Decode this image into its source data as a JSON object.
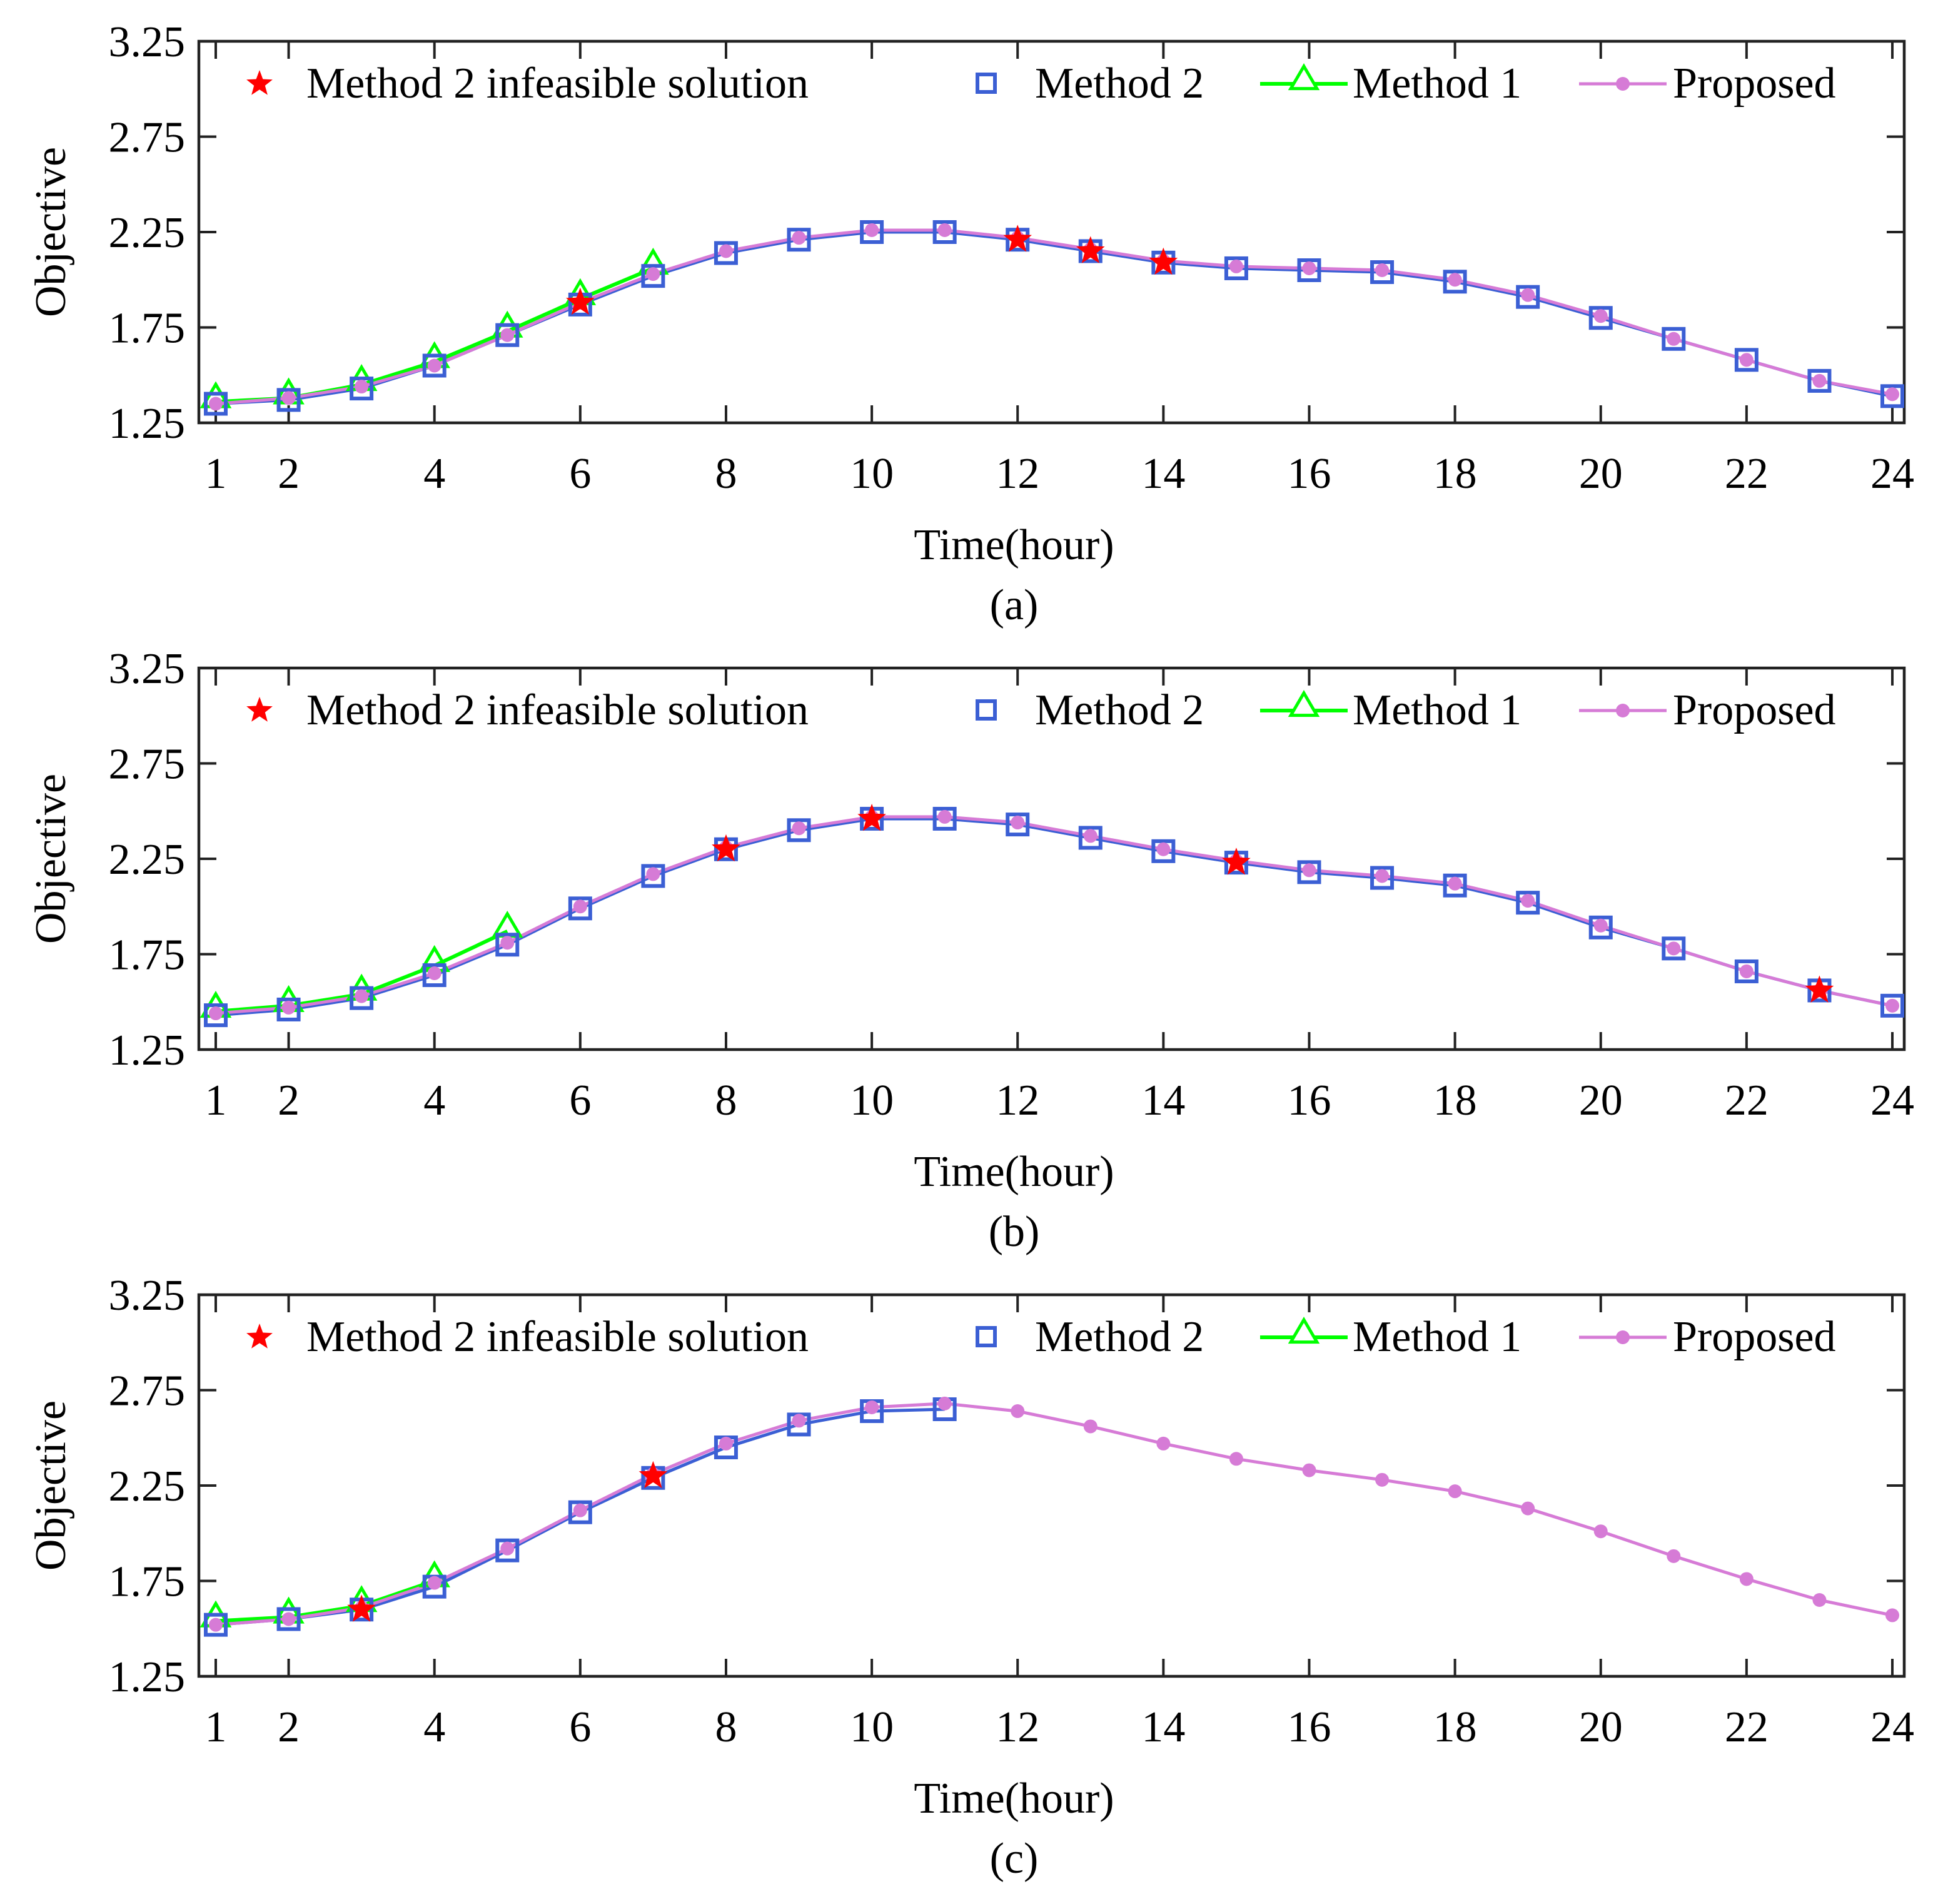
{
  "colors": {
    "infeasible": "#ff0000",
    "method2": "#3b5fd4",
    "method1": "#00ff00",
    "proposed": "#d67bd6"
  },
  "legend": {
    "infeasible": "Method 2 infeasible solution",
    "method2": "Method 2",
    "method1": "Method 1",
    "proposed": "Proposed"
  },
  "chart_data": [
    {
      "type": "line",
      "caption": "(a)",
      "xlabel": "Time(hour)",
      "ylabel": "Objective",
      "xlim": [
        1,
        24
      ],
      "ylim": [
        1.25,
        3.25
      ],
      "xticks": [
        1,
        2,
        4,
        6,
        8,
        10,
        12,
        14,
        16,
        18,
        20,
        22,
        24
      ],
      "yticks": [
        1.25,
        1.75,
        2.25,
        2.75,
        3.25
      ],
      "ytick_labels": [
        "1.25",
        "1.75",
        "2.25",
        "2.75",
        "3.25"
      ],
      "series": [
        {
          "name": "Method 2",
          "x": [
            1,
            2,
            3,
            4,
            5,
            6,
            7,
            8,
            9,
            10,
            11,
            12,
            13,
            14,
            15,
            16,
            17,
            18,
            19,
            20,
            21,
            22,
            23,
            24
          ],
          "values": [
            1.35,
            1.37,
            1.43,
            1.55,
            1.71,
            1.87,
            2.02,
            2.14,
            2.21,
            2.25,
            2.25,
            2.21,
            2.15,
            2.09,
            2.06,
            2.05,
            2.04,
            1.99,
            1.91,
            1.8,
            1.69,
            1.58,
            1.47,
            1.39
          ]
        },
        {
          "name": "Method 1",
          "x": [
            1,
            2,
            3,
            4,
            5,
            6,
            7
          ],
          "values": [
            1.36,
            1.38,
            1.45,
            1.57,
            1.73,
            1.9,
            2.06
          ]
        },
        {
          "name": "Proposed",
          "x": [
            1,
            2,
            3,
            4,
            5,
            6,
            7,
            8,
            9,
            10,
            11,
            12,
            13,
            14,
            15,
            16,
            17,
            18,
            19,
            20,
            21,
            22,
            23,
            24
          ],
          "values": [
            1.35,
            1.38,
            1.44,
            1.55,
            1.71,
            1.88,
            2.03,
            2.15,
            2.22,
            2.26,
            2.26,
            2.22,
            2.16,
            2.1,
            2.07,
            2.06,
            2.05,
            2.0,
            1.92,
            1.81,
            1.69,
            1.58,
            1.47,
            1.4
          ]
        },
        {
          "name": "Method 2 infeasible solution",
          "x": [
            6,
            12,
            13,
            14
          ],
          "values": [
            1.88,
            2.21,
            2.15,
            2.09
          ]
        }
      ]
    },
    {
      "type": "line",
      "caption": "(b)",
      "xlabel": "Time(hour)",
      "ylabel": "Objective",
      "xlim": [
        1,
        24
      ],
      "ylim": [
        1.25,
        3.25
      ],
      "xticks": [
        1,
        2,
        4,
        6,
        8,
        10,
        12,
        14,
        16,
        18,
        20,
        22,
        24
      ],
      "yticks": [
        1.25,
        1.75,
        2.25,
        2.75,
        3.25
      ],
      "ytick_labels": [
        "1.25",
        "1.75",
        "2.25",
        "2.75",
        "3.25"
      ],
      "series": [
        {
          "name": "Method 2",
          "x": [
            1,
            2,
            3,
            4,
            5,
            6,
            7,
            8,
            9,
            10,
            11,
            12,
            13,
            14,
            15,
            16,
            17,
            18,
            19,
            20,
            21,
            22,
            23,
            24
          ],
          "values": [
            1.43,
            1.46,
            1.52,
            1.64,
            1.8,
            1.99,
            2.16,
            2.3,
            2.4,
            2.46,
            2.46,
            2.43,
            2.36,
            2.29,
            2.23,
            2.18,
            2.15,
            2.11,
            2.02,
            1.89,
            1.78,
            1.66,
            1.56,
            1.48
          ]
        },
        {
          "name": "Method 1",
          "x": [
            1,
            2,
            3,
            4,
            5
          ],
          "values": [
            1.45,
            1.48,
            1.54,
            1.69,
            1.87
          ]
        },
        {
          "name": "Proposed",
          "x": [
            1,
            2,
            3,
            4,
            5,
            6,
            7,
            8,
            9,
            10,
            11,
            12,
            13,
            14,
            15,
            16,
            17,
            18,
            19,
            20,
            21,
            22,
            23,
            24
          ],
          "values": [
            1.44,
            1.47,
            1.53,
            1.65,
            1.81,
            2.0,
            2.17,
            2.31,
            2.41,
            2.47,
            2.47,
            2.44,
            2.37,
            2.3,
            2.24,
            2.19,
            2.16,
            2.12,
            2.03,
            1.9,
            1.78,
            1.66,
            1.56,
            1.48
          ]
        },
        {
          "name": "Method 2 infeasible solution",
          "x": [
            8,
            10,
            15,
            23
          ],
          "values": [
            2.3,
            2.46,
            2.23,
            1.56
          ]
        }
      ]
    },
    {
      "type": "line",
      "caption": "(c)",
      "xlabel": "Time(hour)",
      "ylabel": "Objective",
      "xlim": [
        1,
        24
      ],
      "ylim": [
        1.25,
        3.25
      ],
      "xticks": [
        1,
        2,
        4,
        6,
        8,
        10,
        12,
        14,
        16,
        18,
        20,
        22,
        24
      ],
      "yticks": [
        1.25,
        1.75,
        2.25,
        2.75,
        3.25
      ],
      "ytick_labels": [
        "1.25",
        "1.75",
        "2.25",
        "2.75",
        "3.25"
      ],
      "series": [
        {
          "name": "Method 2",
          "x": [
            1,
            2,
            3,
            4,
            5,
            6,
            7,
            8,
            9,
            10,
            11
          ],
          "values": [
            1.52,
            1.55,
            1.6,
            1.72,
            1.91,
            2.11,
            2.29,
            2.45,
            2.57,
            2.64,
            2.65
          ]
        },
        {
          "name": "Method 1",
          "x": [
            1,
            2,
            3,
            4
          ],
          "values": [
            1.54,
            1.56,
            1.62,
            1.75
          ]
        },
        {
          "name": "Proposed",
          "x": [
            1,
            2,
            3,
            4,
            5,
            6,
            7,
            8,
            9,
            10,
            11,
            12,
            13,
            14,
            15,
            16,
            17,
            18,
            19,
            20,
            21,
            22,
            23,
            24
          ],
          "values": [
            1.52,
            1.55,
            1.61,
            1.74,
            1.92,
            2.12,
            2.31,
            2.47,
            2.59,
            2.66,
            2.68,
            2.64,
            2.56,
            2.47,
            2.39,
            2.33,
            2.28,
            2.22,
            2.13,
            2.01,
            1.88,
            1.76,
            1.65,
            1.57
          ]
        },
        {
          "name": "Method 2 infeasible solution",
          "x": [
            3,
            7
          ],
          "values": [
            1.6,
            2.3
          ]
        }
      ]
    }
  ]
}
